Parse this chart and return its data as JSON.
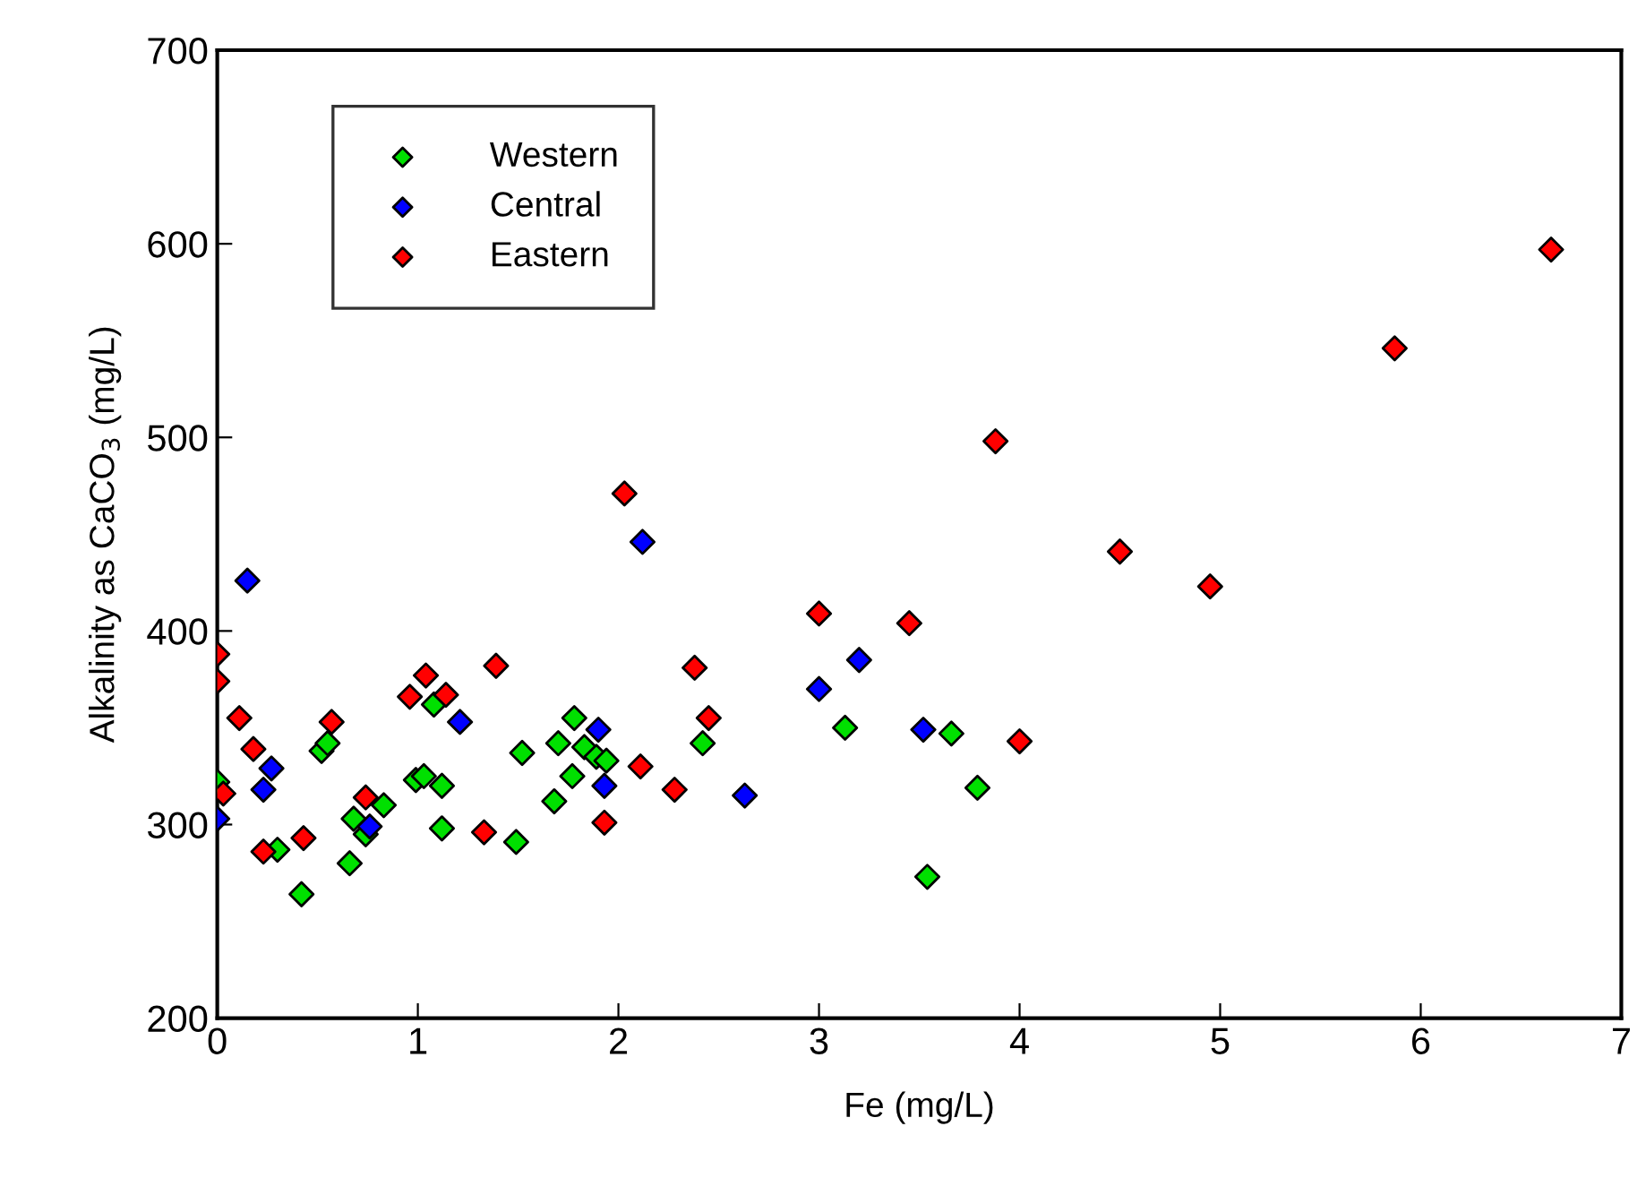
{
  "chart_data": {
    "type": "scatter",
    "xlabel": "Fe (mg/L)",
    "ylabel": "Alkalinity as CaCO$_{3}$ (mg/L)",
    "xlim": [
      0,
      7
    ],
    "ylim": [
      200,
      700
    ],
    "xticks": [
      0,
      1,
      2,
      3,
      4,
      5,
      6,
      7
    ],
    "yticks": [
      200,
      300,
      400,
      500,
      600,
      700
    ],
    "grid": false,
    "legend": "top left",
    "marker": "diamond",
    "series": [
      {
        "name": "Western",
        "color": "#00e000",
        "x": [
          0.0,
          0.3,
          0.42,
          0.52,
          0.55,
          0.66,
          0.68,
          0.74,
          0.83,
          0.99,
          1.03,
          1.08,
          1.12,
          1.12,
          1.49,
          1.52,
          1.68,
          1.7,
          1.77,
          1.78,
          1.83,
          1.89,
          1.94,
          2.42,
          3.13,
          3.54,
          3.66,
          3.79
        ],
        "values": [
          322,
          287,
          264,
          338,
          342,
          280,
          303,
          295,
          310,
          323,
          325,
          362,
          320,
          298,
          291,
          337,
          312,
          342,
          325,
          355,
          340,
          335,
          333,
          342,
          350,
          273,
          347,
          319
        ]
      },
      {
        "name": "Central",
        "color": "#0000ff",
        "x": [
          0.0,
          0.15,
          0.23,
          0.27,
          0.76,
          1.21,
          1.9,
          1.93,
          2.12,
          2.63,
          3.0,
          3.2,
          3.52
        ],
        "values": [
          303,
          426,
          318,
          329,
          299,
          353,
          349,
          320,
          446,
          315,
          370,
          385,
          349
        ]
      },
      {
        "name": "Eastern",
        "color": "#ff0000",
        "x": [
          0.0,
          0.0,
          0.03,
          0.11,
          0.18,
          0.23,
          0.43,
          0.57,
          0.74,
          0.96,
          1.04,
          1.14,
          1.33,
          1.39,
          1.93,
          2.03,
          2.11,
          2.28,
          2.38,
          2.45,
          3.0,
          3.45,
          3.88,
          4.0,
          4.5,
          4.95,
          5.87,
          6.65
        ],
        "values": [
          388,
          374,
          316,
          355,
          339,
          286,
          293,
          353,
          314,
          366,
          377,
          367,
          296,
          382,
          301,
          471,
          330,
          318,
          381,
          355,
          409,
          404,
          498,
          343,
          441,
          423,
          546,
          597
        ]
      }
    ]
  }
}
